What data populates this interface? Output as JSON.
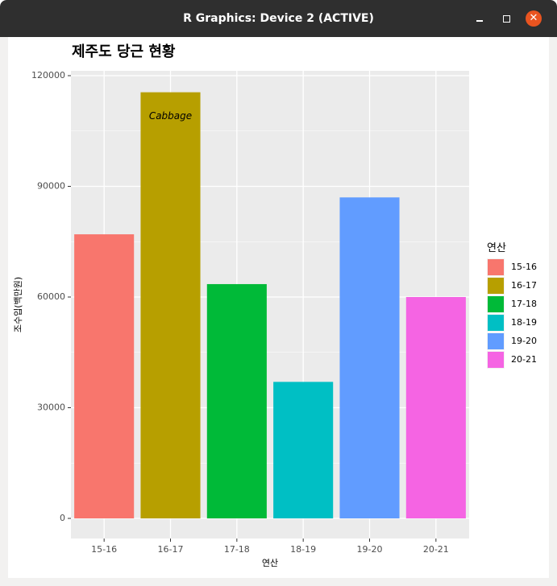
{
  "window": {
    "title": "R Graphics: Device 2 (ACTIVE)",
    "controls": {
      "minimize_icon": "minimize-icon",
      "maximize_icon": "maximize-icon",
      "close_icon": "close-icon",
      "close_glyph": "✕"
    },
    "close_color": "#e95420"
  },
  "chart_data": {
    "type": "bar",
    "title": "제주도 당근 현황",
    "xlabel": "연산",
    "ylabel": "조수입(백만원)",
    "categories": [
      "15-16",
      "16-17",
      "17-18",
      "18-19",
      "19-20",
      "20-21"
    ],
    "values": [
      77000,
      115500,
      63500,
      37000,
      87000,
      60000
    ],
    "colors": [
      "#F8766D",
      "#B79F00",
      "#00BA38",
      "#00BFC4",
      "#619CFF",
      "#F564E3"
    ],
    "ylim": [
      0,
      120000
    ],
    "yticks": [
      0,
      30000,
      60000,
      90000,
      120000
    ],
    "ytick_labels": [
      "0",
      "30000",
      "60000",
      "90000",
      "120000"
    ],
    "annotation": {
      "text": "Cabbage",
      "category": "16-17",
      "y": 109000
    },
    "legend": {
      "title": "연산",
      "position": "right",
      "items": [
        "15-16",
        "16-17",
        "17-18",
        "18-19",
        "19-20",
        "20-21"
      ]
    },
    "grid": true,
    "panel_background": "#EBEBEB"
  }
}
